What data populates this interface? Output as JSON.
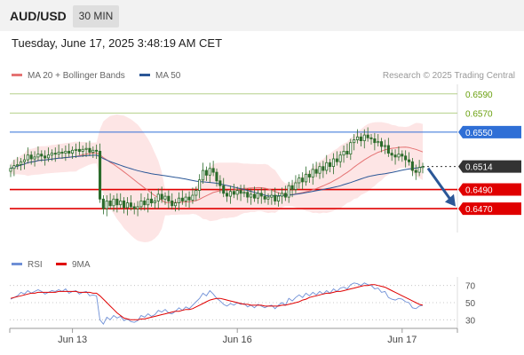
{
  "header": {
    "symbol": "AUD/USD",
    "timeframe": "30 MIN"
  },
  "datetime": "Tuesday, June 17, 2025 3:48:19 AM CET",
  "legend": {
    "ma20_label": "MA 20 + Bollinger Bands",
    "ma50_label": "MA 50",
    "credit": "Research © 2025 Trading Central"
  },
  "colors": {
    "candle": "#2a6b2a",
    "ma20": "#e57373",
    "ma50": "#2b5797",
    "bollinger_fill": "#fde0e0",
    "resistance_green": "#b5d08a",
    "resistance_blue": "#2f6fd6",
    "support_red": "#e00000",
    "last_price": "#333333",
    "rsi": "#6e8fd6",
    "rsi_ma": "#e00000",
    "forecast_arrow": "#2b5797"
  },
  "chart_data": [
    {
      "type": "candlestick",
      "title": "AUD/USD 30 MIN",
      "ylim": [
        0.6445,
        0.66
      ],
      "x_ticks": [
        {
          "label": "Jun 13",
          "index": 18
        },
        {
          "label": "Jun 16",
          "index": 66
        },
        {
          "label": "Jun 17",
          "index": 114
        }
      ],
      "levels": [
        {
          "value": 0.659,
          "label": "0.6590",
          "kind": "resistance-minor",
          "color": "#b5d08a",
          "text_color": "#6aa00f"
        },
        {
          "value": 0.657,
          "label": "0.6570",
          "kind": "resistance-minor",
          "color": "#b5d08a",
          "text_color": "#6aa00f"
        },
        {
          "value": 0.655,
          "label": "0.6550",
          "kind": "resistance",
          "color": "#2f6fd6",
          "badge": "#2f6fd6"
        },
        {
          "value": 0.6514,
          "label": "0.6514",
          "kind": "last-price",
          "color": "#333333",
          "badge": "#333333"
        },
        {
          "value": 0.649,
          "label": "0.6490",
          "kind": "support",
          "color": "#e00000",
          "badge": "#e00000"
        },
        {
          "value": 0.647,
          "label": "0.6470",
          "kind": "support",
          "color": "#e00000",
          "badge": "#e00000"
        }
      ],
      "forecast_arrow": {
        "from": 0.6514,
        "to": 0.6475
      },
      "close": [
        0.6512,
        0.6515,
        0.6516,
        0.6519,
        0.6521,
        0.6526,
        0.6522,
        0.6524,
        0.6527,
        0.6525,
        0.6523,
        0.6526,
        0.6528,
        0.6527,
        0.6529,
        0.6528,
        0.653,
        0.6528,
        0.6531,
        0.6532,
        0.653,
        0.6532,
        0.6533,
        0.6529,
        0.6531,
        0.653,
        0.648,
        0.647,
        0.6478,
        0.6473,
        0.648,
        0.6474,
        0.6478,
        0.6471,
        0.6476,
        0.6472,
        0.647,
        0.6472,
        0.6478,
        0.6474,
        0.648,
        0.6476,
        0.6478,
        0.6485,
        0.648,
        0.6483,
        0.6478,
        0.6473,
        0.6476,
        0.6481,
        0.6478,
        0.6482,
        0.6479,
        0.6484,
        0.6489,
        0.65,
        0.651,
        0.6505,
        0.6512,
        0.6508,
        0.6499,
        0.6494,
        0.6486,
        0.6483,
        0.6488,
        0.6485,
        0.6489,
        0.6486,
        0.6487,
        0.6482,
        0.6485,
        0.6481,
        0.6486,
        0.6483,
        0.648,
        0.6482,
        0.6484,
        0.6478,
        0.6483,
        0.6486,
        0.6482,
        0.6494,
        0.649,
        0.6497,
        0.6502,
        0.6498,
        0.6506,
        0.6503,
        0.6511,
        0.6507,
        0.6514,
        0.651,
        0.6518,
        0.6514,
        0.6522,
        0.6519,
        0.6526,
        0.653,
        0.6527,
        0.6539,
        0.6542,
        0.6545,
        0.6541,
        0.6547,
        0.6544,
        0.6543,
        0.6539,
        0.654,
        0.6535,
        0.6536,
        0.6528,
        0.6526,
        0.6524,
        0.6527,
        0.6525,
        0.6521,
        0.6519,
        0.651,
        0.6508,
        0.6513,
        0.6514
      ]
    },
    {
      "type": "line",
      "title": "",
      "series": [
        {
          "name": "RSI",
          "color": "#6e8fd6"
        },
        {
          "name": "9MA",
          "color": "#e00000"
        }
      ],
      "yticks": [
        70,
        50,
        30
      ],
      "ylim": [
        20,
        80
      ],
      "rsi": [
        54,
        56,
        58,
        62,
        60,
        64,
        61,
        63,
        65,
        63,
        60,
        62,
        64,
        63,
        65,
        63,
        66,
        61,
        63,
        64,
        60,
        62,
        63,
        58,
        59,
        58,
        30,
        25,
        33,
        30,
        35,
        32,
        34,
        29,
        31,
        28,
        27,
        29,
        35,
        33,
        37,
        34,
        36,
        41,
        39,
        42,
        38,
        37,
        40,
        44,
        41,
        45,
        43,
        47,
        51,
        55,
        61,
        58,
        64,
        60,
        55,
        52,
        48,
        46,
        49,
        47,
        50,
        48,
        49,
        45,
        47,
        44,
        48,
        46,
        44,
        46,
        47,
        43,
        47,
        50,
        47,
        55,
        52,
        56,
        59,
        56,
        61,
        58,
        62,
        59,
        63,
        60,
        64,
        61,
        66,
        63,
        67,
        68,
        66,
        71,
        73,
        72,
        70,
        73,
        71,
        70,
        66,
        67,
        62,
        63,
        56,
        54,
        53,
        55,
        54,
        51,
        50,
        44,
        43,
        46,
        47
      ],
      "rsi_ma": [
        55,
        56,
        57,
        58,
        59,
        60,
        61,
        61,
        62,
        62,
        62,
        62,
        62,
        62,
        63,
        63,
        63,
        63,
        63,
        63,
        62,
        62,
        62,
        62,
        61,
        61,
        58,
        54,
        50,
        46,
        42,
        38,
        35,
        32,
        31,
        30,
        30,
        30,
        31,
        31,
        32,
        33,
        34,
        35,
        36,
        37,
        38,
        39,
        40,
        40,
        41,
        42,
        42,
        43,
        45,
        47,
        49,
        51,
        53,
        54,
        55,
        55,
        54,
        53,
        52,
        51,
        50,
        49,
        48,
        48,
        47,
        47,
        47,
        47,
        46,
        46,
        46,
        46,
        46,
        47,
        47,
        48,
        49,
        50,
        51,
        53,
        54,
        56,
        57,
        58,
        59,
        60,
        61,
        61,
        62,
        63,
        63,
        64,
        65,
        66,
        67,
        68,
        69,
        70,
        70,
        71,
        71,
        70,
        69,
        68,
        66,
        64,
        62,
        60,
        58,
        56,
        54,
        52,
        50,
        48,
        47
      ]
    }
  ]
}
